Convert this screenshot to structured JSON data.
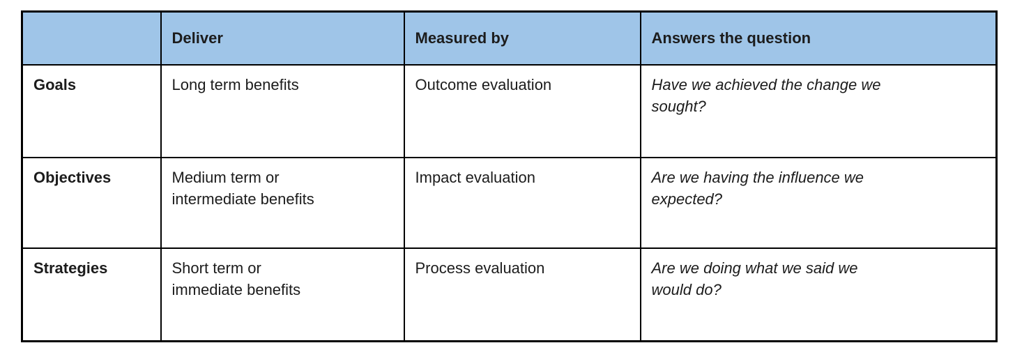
{
  "table": {
    "title_hint": "Goals, objectives and strategies evaluation matrix",
    "colors": {
      "header_bg": "#9FC5E8",
      "border": "#000000",
      "text": "#1c1c1c",
      "body_bg": "#ffffff"
    },
    "header": {
      "corner": "",
      "deliver": "Deliver",
      "measured_by": "Measured by",
      "question": "Answers the question"
    },
    "rows": [
      {
        "label": "Goals",
        "deliver": "Long term benefits",
        "measured_by": "Outcome evaluation",
        "question": "Have we achieved the change we sought?"
      },
      {
        "label": "Objectives",
        "deliver": "Medium term or intermediate benefits",
        "measured_by": "Impact evaluation",
        "question": "Are we having the influence we expected?"
      },
      {
        "label": "Strategies",
        "deliver": "Short term or immediate benefits",
        "measured_by": "Process evaluation",
        "question": "Are we doing what we said we would do?"
      }
    ]
  }
}
